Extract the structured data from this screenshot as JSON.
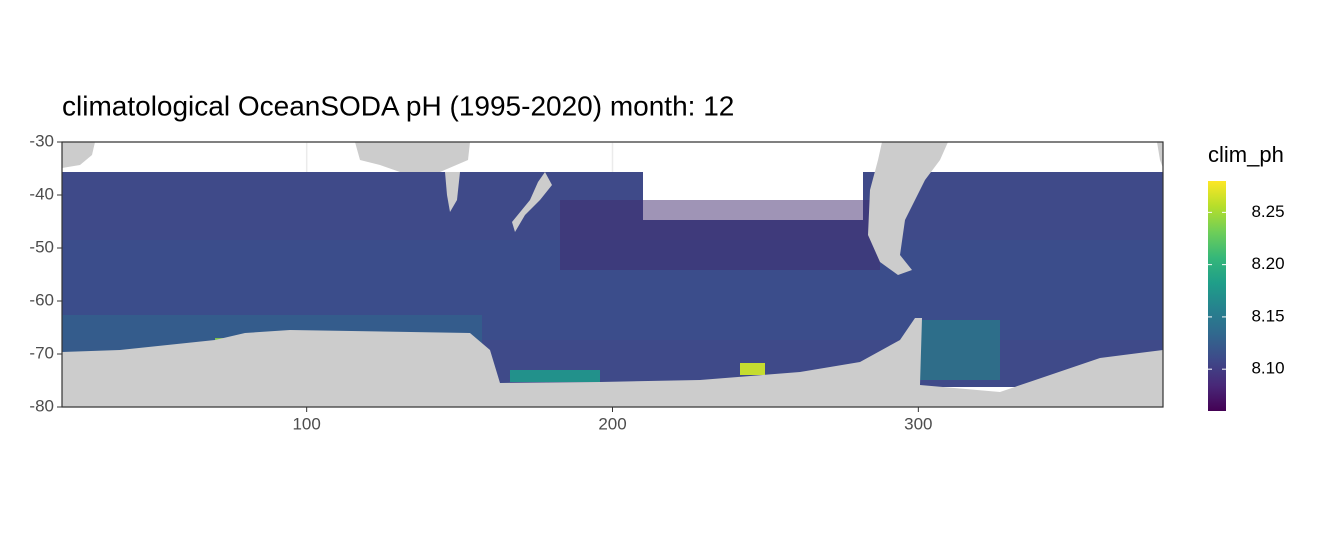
{
  "chart_data": {
    "type": "raster",
    "title": "climatological OceanSODA pH (1995-2020) month: 12",
    "xlim": [
      20,
      380
    ],
    "xticks": [
      100,
      200,
      300
    ],
    "ylim": [
      -80,
      -30
    ],
    "yticks": [
      -30,
      -40,
      -50,
      -60,
      -70,
      -80
    ],
    "grid": true,
    "legend": {
      "title": "clim_ph",
      "position": "right",
      "limits": [
        8.06,
        8.28
      ],
      "ticks": [
        {
          "value": 8.1,
          "label": "8.10"
        },
        8.15,
        {
          "value": 8.2,
          "label": "8.20"
        },
        8.25
      ],
      "colors": [
        "#440154",
        "#482878",
        "#3e4989",
        "#31688e",
        "#26828e",
        "#1f9e89",
        "#35b779",
        "#6ece58",
        "#b5de2b",
        "#fde725"
      ]
    }
  }
}
